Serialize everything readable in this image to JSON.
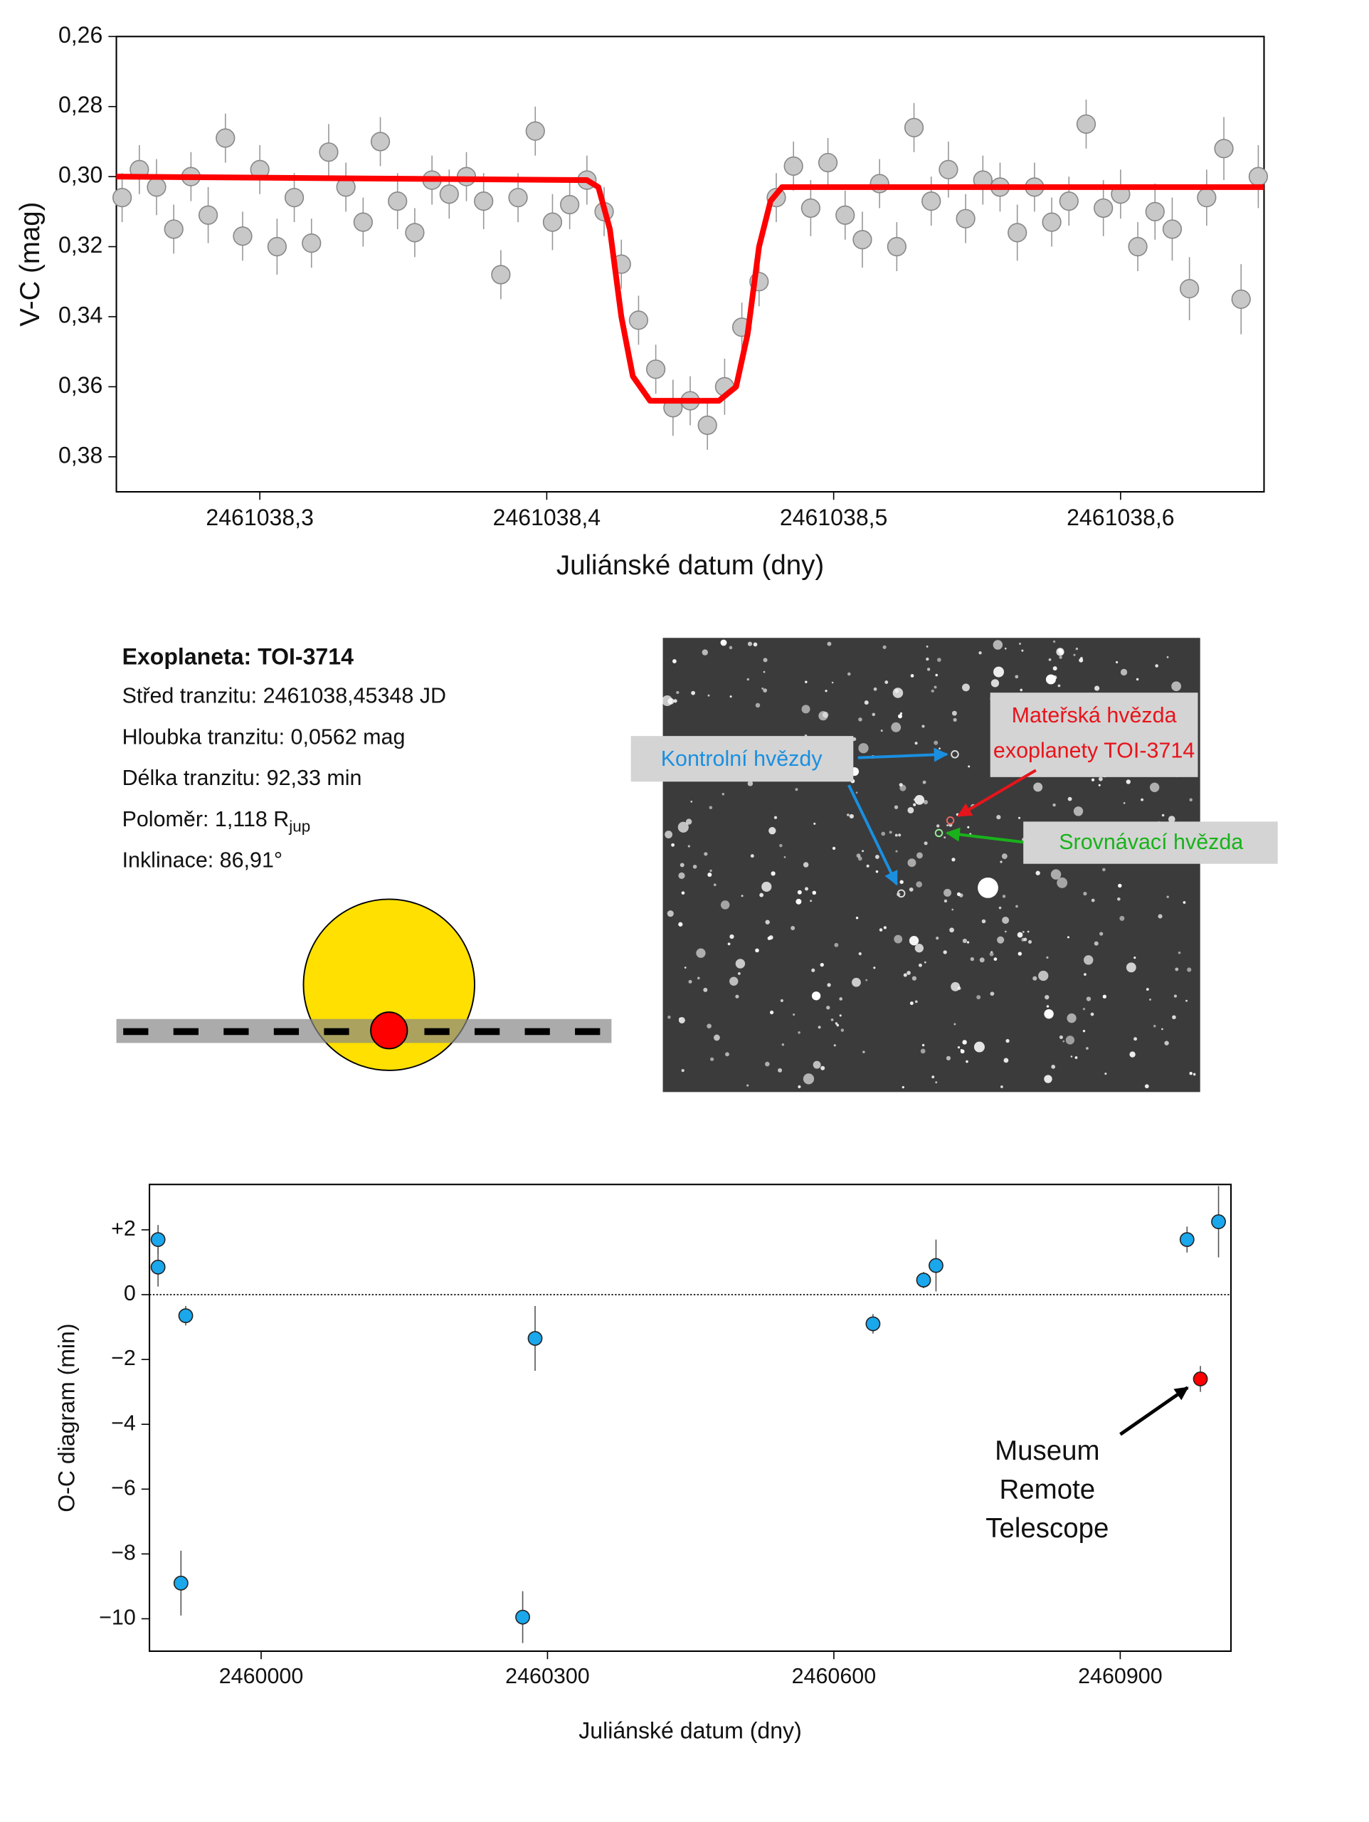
{
  "chart_data": [
    {
      "type": "scatter",
      "y_label": "V-C (mag)",
      "x_label": "Juliánské datum (dny)",
      "xlim": [
        2461038.25,
        2461038.65
      ],
      "xticks": [
        {
          "value": 2461038.3,
          "label": "2461038,3"
        },
        {
          "value": 2461038.4,
          "label": "2461038,4"
        },
        {
          "value": 2461038.5,
          "label": "2461038,5"
        },
        {
          "value": 2461038.6,
          "label": "2461038,6"
        }
      ],
      "ylim": [
        0.26,
        0.39
      ],
      "y_inverted": true,
      "yticks": [
        {
          "value": 0.26,
          "label": "0,26"
        },
        {
          "value": 0.28,
          "label": "0,28"
        },
        {
          "value": 0.3,
          "label": "0,30"
        },
        {
          "value": 0.32,
          "label": "0,32"
        },
        {
          "value": 0.34,
          "label": "0,34"
        },
        {
          "value": 0.36,
          "label": "0,36"
        },
        {
          "value": 0.38,
          "label": "0,38"
        }
      ],
      "points": {
        "color": "#c8c8c8",
        "x": [
          2461038.252,
          2461038.258,
          2461038.264,
          2461038.27,
          2461038.276,
          2461038.282,
          2461038.288,
          2461038.294,
          2461038.3,
          2461038.306,
          2461038.312,
          2461038.318,
          2461038.324,
          2461038.33,
          2461038.336,
          2461038.342,
          2461038.348,
          2461038.354,
          2461038.36,
          2461038.366,
          2461038.372,
          2461038.378,
          2461038.384,
          2461038.39,
          2461038.396,
          2461038.402,
          2461038.408,
          2461038.414,
          2461038.42,
          2461038.426,
          2461038.432,
          2461038.438,
          2461038.444,
          2461038.45,
          2461038.456,
          2461038.462,
          2461038.468,
          2461038.474,
          2461038.48,
          2461038.486,
          2461038.492,
          2461038.498,
          2461038.504,
          2461038.51,
          2461038.516,
          2461038.522,
          2461038.528,
          2461038.534,
          2461038.54,
          2461038.546,
          2461038.552,
          2461038.558,
          2461038.564,
          2461038.57,
          2461038.576,
          2461038.582,
          2461038.588,
          2461038.594,
          2461038.6,
          2461038.606,
          2461038.612,
          2461038.618,
          2461038.624,
          2461038.63,
          2461038.636,
          2461038.642,
          2461038.648
        ],
        "values": [
          0.306,
          0.298,
          0.303,
          0.315,
          0.3,
          0.311,
          0.289,
          0.317,
          0.298,
          0.32,
          0.306,
          0.319,
          0.293,
          0.303,
          0.313,
          0.29,
          0.307,
          0.316,
          0.301,
          0.305,
          0.3,
          0.307,
          0.328,
          0.306,
          0.287,
          0.313,
          0.308,
          0.301,
          0.31,
          0.325,
          0.341,
          0.355,
          0.366,
          0.364,
          0.371,
          0.36,
          0.343,
          0.33,
          0.306,
          0.297,
          0.309,
          0.296,
          0.311,
          0.318,
          0.302,
          0.32,
          0.286,
          0.307,
          0.298,
          0.312,
          0.301,
          0.303,
          0.316,
          0.303,
          0.313,
          0.307,
          0.285,
          0.309,
          0.305,
          0.32,
          0.31,
          0.315,
          0.332,
          0.306,
          0.292,
          0.335,
          0.3
        ],
        "errors": [
          0.007,
          0.007,
          0.008,
          0.007,
          0.007,
          0.008,
          0.007,
          0.007,
          0.007,
          0.008,
          0.007,
          0.007,
          0.008,
          0.007,
          0.007,
          0.007,
          0.008,
          0.007,
          0.007,
          0.007,
          0.007,
          0.008,
          0.007,
          0.007,
          0.007,
          0.008,
          0.007,
          0.007,
          0.007,
          0.007,
          0.007,
          0.007,
          0.008,
          0.007,
          0.007,
          0.008,
          0.007,
          0.007,
          0.007,
          0.007,
          0.008,
          0.007,
          0.007,
          0.008,
          0.007,
          0.007,
          0.007,
          0.007,
          0.008,
          0.007,
          0.007,
          0.007,
          0.008,
          0.007,
          0.007,
          0.007,
          0.007,
          0.008,
          0.007,
          0.007,
          0.008,
          0.009,
          0.009,
          0.008,
          0.009,
          0.01,
          0.009
        ]
      },
      "model": {
        "color": "#ff0000",
        "x": [
          2461038.25,
          2461038.414,
          2461038.418,
          2461038.422,
          2461038.426,
          2461038.43,
          2461038.436,
          2461038.46,
          2461038.466,
          2461038.47,
          2461038.474,
          2461038.478,
          2461038.482,
          2461038.65
        ],
        "values": [
          0.3,
          0.301,
          0.303,
          0.315,
          0.34,
          0.357,
          0.364,
          0.364,
          0.36,
          0.345,
          0.32,
          0.307,
          0.303,
          0.303
        ]
      }
    },
    {
      "type": "scatter",
      "y_label": "O-C diagram (min)",
      "x_label": "Juliánské datum (dny)",
      "xlim": [
        2459883,
        2461016
      ],
      "xticks": [
        2460000,
        2460300,
        2460600,
        2460900
      ],
      "ylim": [
        -11,
        3.4
      ],
      "yticks": [
        {
          "value": 2,
          "label": "+2"
        },
        0,
        {
          "value": -2,
          "label": "−2"
        },
        {
          "value": -4,
          "label": "−4"
        },
        {
          "value": -6,
          "label": "−6"
        },
        {
          "value": -8,
          "label": "−8"
        },
        {
          "value": -10,
          "label": "−10"
        }
      ],
      "zero_line": true,
      "points": {
        "color": "#1aa7ec",
        "x": [
          2459892,
          2459892,
          2459921,
          2459916,
          2460274,
          2460287,
          2460641,
          2460694,
          2460707,
          2460970,
          2461003
        ],
        "values": [
          1.7,
          0.85,
          -0.65,
          -8.9,
          -9.95,
          -1.35,
          -0.9,
          0.45,
          0.9,
          1.7,
          2.25
        ],
        "errors": [
          0.45,
          0.6,
          0.3,
          1.0,
          0.8,
          1.0,
          0.3,
          0.25,
          0.8,
          0.4,
          1.1
        ]
      },
      "highlight": {
        "color": "#ff0000",
        "x": [
          2460984
        ],
        "values": [
          -2.6
        ],
        "errors": [
          0.4
        ]
      },
      "annotation": [
        "Museum",
        "Remote",
        "Telescope"
      ]
    }
  ],
  "info": {
    "title": "Exoplaneta: TOI-3714",
    "lines": [
      "Střed tranzitu: 2461038,45348  JD",
      "Hloubka tranzitu: 0,0562 mag",
      "Délka tranzitu: 92,33 min"
    ],
    "radius": "Poloměr: 1,118 R",
    "radius_sub": "jup",
    "inclination": "Inklinace: 86,91°"
  },
  "finder": {
    "check": "Kontrolní hvězdy",
    "host": [
      "Mateřská hvězda",
      "exoplanety TOI-3714"
    ],
    "comparison": "Srovnávací hvězda"
  }
}
